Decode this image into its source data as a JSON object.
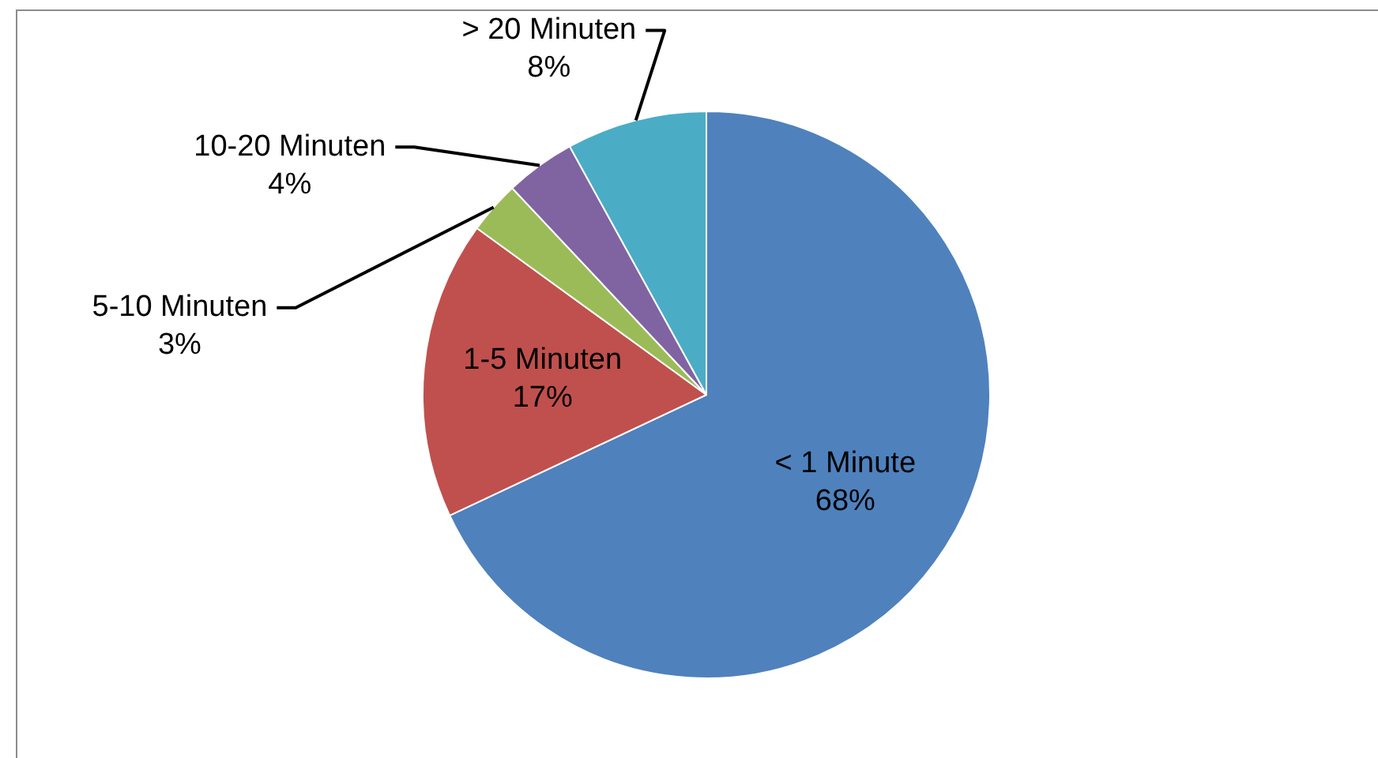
{
  "chart_data": {
    "type": "pie",
    "categories": [
      "< 1 Minute",
      "1-5 Minuten",
      "5-10 Minuten",
      "10-20 Minuten",
      "> 20 Minuten"
    ],
    "values": [
      68,
      17,
      3,
      4,
      8
    ],
    "colors": [
      "#4f81bd",
      "#c0504d",
      "#9bbb59",
      "#8064a2",
      "#4bacc6"
    ],
    "value_labels": [
      "68%",
      "17%",
      "3%",
      "4%",
      "8%"
    ],
    "legend": false
  }
}
